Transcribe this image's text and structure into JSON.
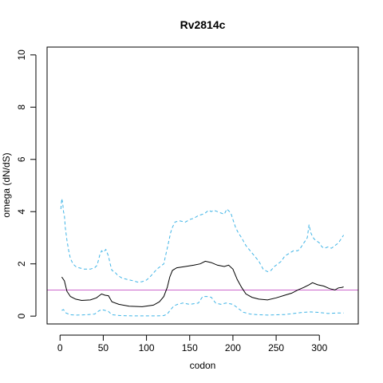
{
  "chart_data": {
    "type": "line",
    "title": "Rv2814c",
    "xlabel": "codon",
    "ylabel": "omega (dN/dS)",
    "xlim": [
      -15,
      345
    ],
    "ylim": [
      -0.3,
      10.3
    ],
    "xticks": [
      0,
      50,
      100,
      150,
      200,
      250,
      300
    ],
    "yticks": [
      0,
      2,
      4,
      6,
      8,
      10
    ],
    "grid": false,
    "legend": "none",
    "reference_line": {
      "y": 1,
      "color": "#cc66cc"
    },
    "series": [
      {
        "role": "omega",
        "style": "solid",
        "color": "#000000",
        "x": [
          2,
          5,
          8,
          12,
          18,
          25,
          35,
          42,
          48,
          52,
          56,
          60,
          68,
          80,
          95,
          108,
          115,
          120,
          124,
          127,
          130,
          135,
          145,
          155,
          162,
          168,
          175,
          182,
          190,
          195,
          200,
          205,
          210,
          215,
          222,
          230,
          240,
          250,
          260,
          268,
          275,
          282,
          288,
          292,
          298,
          305,
          312,
          318,
          322,
          326,
          328
        ],
        "y": [
          1.5,
          1.35,
          0.95,
          0.75,
          0.65,
          0.6,
          0.62,
          0.7,
          0.85,
          0.8,
          0.78,
          0.55,
          0.45,
          0.38,
          0.36,
          0.42,
          0.55,
          0.75,
          1.1,
          1.5,
          1.75,
          1.85,
          1.9,
          1.95,
          2.0,
          2.1,
          2.05,
          1.95,
          1.9,
          1.95,
          1.8,
          1.4,
          1.1,
          0.85,
          0.72,
          0.65,
          0.62,
          0.7,
          0.8,
          0.88,
          1.0,
          1.1,
          1.2,
          1.28,
          1.2,
          1.15,
          1.05,
          1.0,
          1.08,
          1.1,
          1.12
        ]
      },
      {
        "role": "upper bound",
        "style": "dashed",
        "color": "#3fb4e6",
        "x": [
          1,
          2,
          3,
          4,
          5,
          6,
          8,
          10,
          12,
          15,
          18,
          22,
          28,
          35,
          40,
          43,
          46,
          48,
          50,
          53,
          56,
          58,
          60,
          63,
          67,
          72,
          78,
          85,
          90,
          95,
          100,
          104,
          108,
          112,
          116,
          120,
          122,
          124,
          126,
          128,
          130,
          133,
          138,
          145,
          150,
          155,
          160,
          165,
          168,
          170,
          172,
          175,
          178,
          182,
          186,
          190,
          193,
          196,
          198,
          200,
          203,
          206,
          210,
          215,
          220,
          225,
          230,
          235,
          240,
          244,
          248,
          252,
          256,
          260,
          265,
          270,
          275,
          278,
          282,
          286,
          288,
          290,
          292,
          294,
          296,
          300,
          303,
          306,
          310,
          314,
          318,
          322,
          326,
          328
        ],
        "y": [
          4.1,
          4.5,
          4.35,
          4.0,
          3.85,
          3.4,
          2.9,
          2.5,
          2.2,
          2.0,
          1.9,
          1.85,
          1.8,
          1.8,
          1.85,
          1.95,
          2.35,
          2.5,
          2.45,
          2.55,
          2.3,
          2.0,
          1.75,
          1.7,
          1.55,
          1.45,
          1.4,
          1.35,
          1.3,
          1.32,
          1.38,
          1.5,
          1.65,
          1.8,
          1.9,
          2.0,
          2.3,
          2.6,
          2.9,
          3.2,
          3.4,
          3.6,
          3.65,
          3.6,
          3.7,
          3.75,
          3.85,
          3.9,
          3.95,
          4.0,
          4.05,
          4.0,
          4.05,
          4.0,
          3.95,
          3.9,
          4.1,
          4.0,
          3.9,
          3.7,
          3.4,
          3.2,
          3.0,
          2.7,
          2.5,
          2.3,
          2.1,
          1.8,
          1.7,
          1.75,
          1.9,
          2.0,
          2.1,
          2.3,
          2.4,
          2.5,
          2.5,
          2.6,
          2.8,
          3.0,
          3.5,
          3.2,
          3.05,
          2.95,
          2.9,
          2.8,
          2.65,
          2.6,
          2.65,
          2.6,
          2.7,
          2.8,
          3.0,
          3.1
        ]
      },
      {
        "role": "lower bound",
        "style": "dashed",
        "color": "#3fb4e6",
        "x": [
          2,
          4,
          7,
          12,
          20,
          30,
          40,
          45,
          48,
          52,
          56,
          60,
          70,
          85,
          100,
          112,
          120,
          124,
          128,
          132,
          136,
          142,
          150,
          160,
          165,
          170,
          175,
          180,
          186,
          192,
          200,
          206,
          212,
          220,
          230,
          240,
          250,
          260,
          270,
          280,
          290,
          300,
          310,
          320,
          328
        ],
        "y": [
          0.22,
          0.25,
          0.12,
          0.05,
          0.04,
          0.05,
          0.08,
          0.2,
          0.25,
          0.22,
          0.18,
          0.05,
          0.02,
          0.01,
          0.01,
          0.01,
          0.02,
          0.08,
          0.25,
          0.4,
          0.45,
          0.5,
          0.45,
          0.5,
          0.75,
          0.75,
          0.72,
          0.5,
          0.45,
          0.5,
          0.45,
          0.3,
          0.15,
          0.08,
          0.05,
          0.04,
          0.05,
          0.06,
          0.1,
          0.14,
          0.16,
          0.14,
          0.1,
          0.12,
          0.12
        ]
      }
    ]
  }
}
